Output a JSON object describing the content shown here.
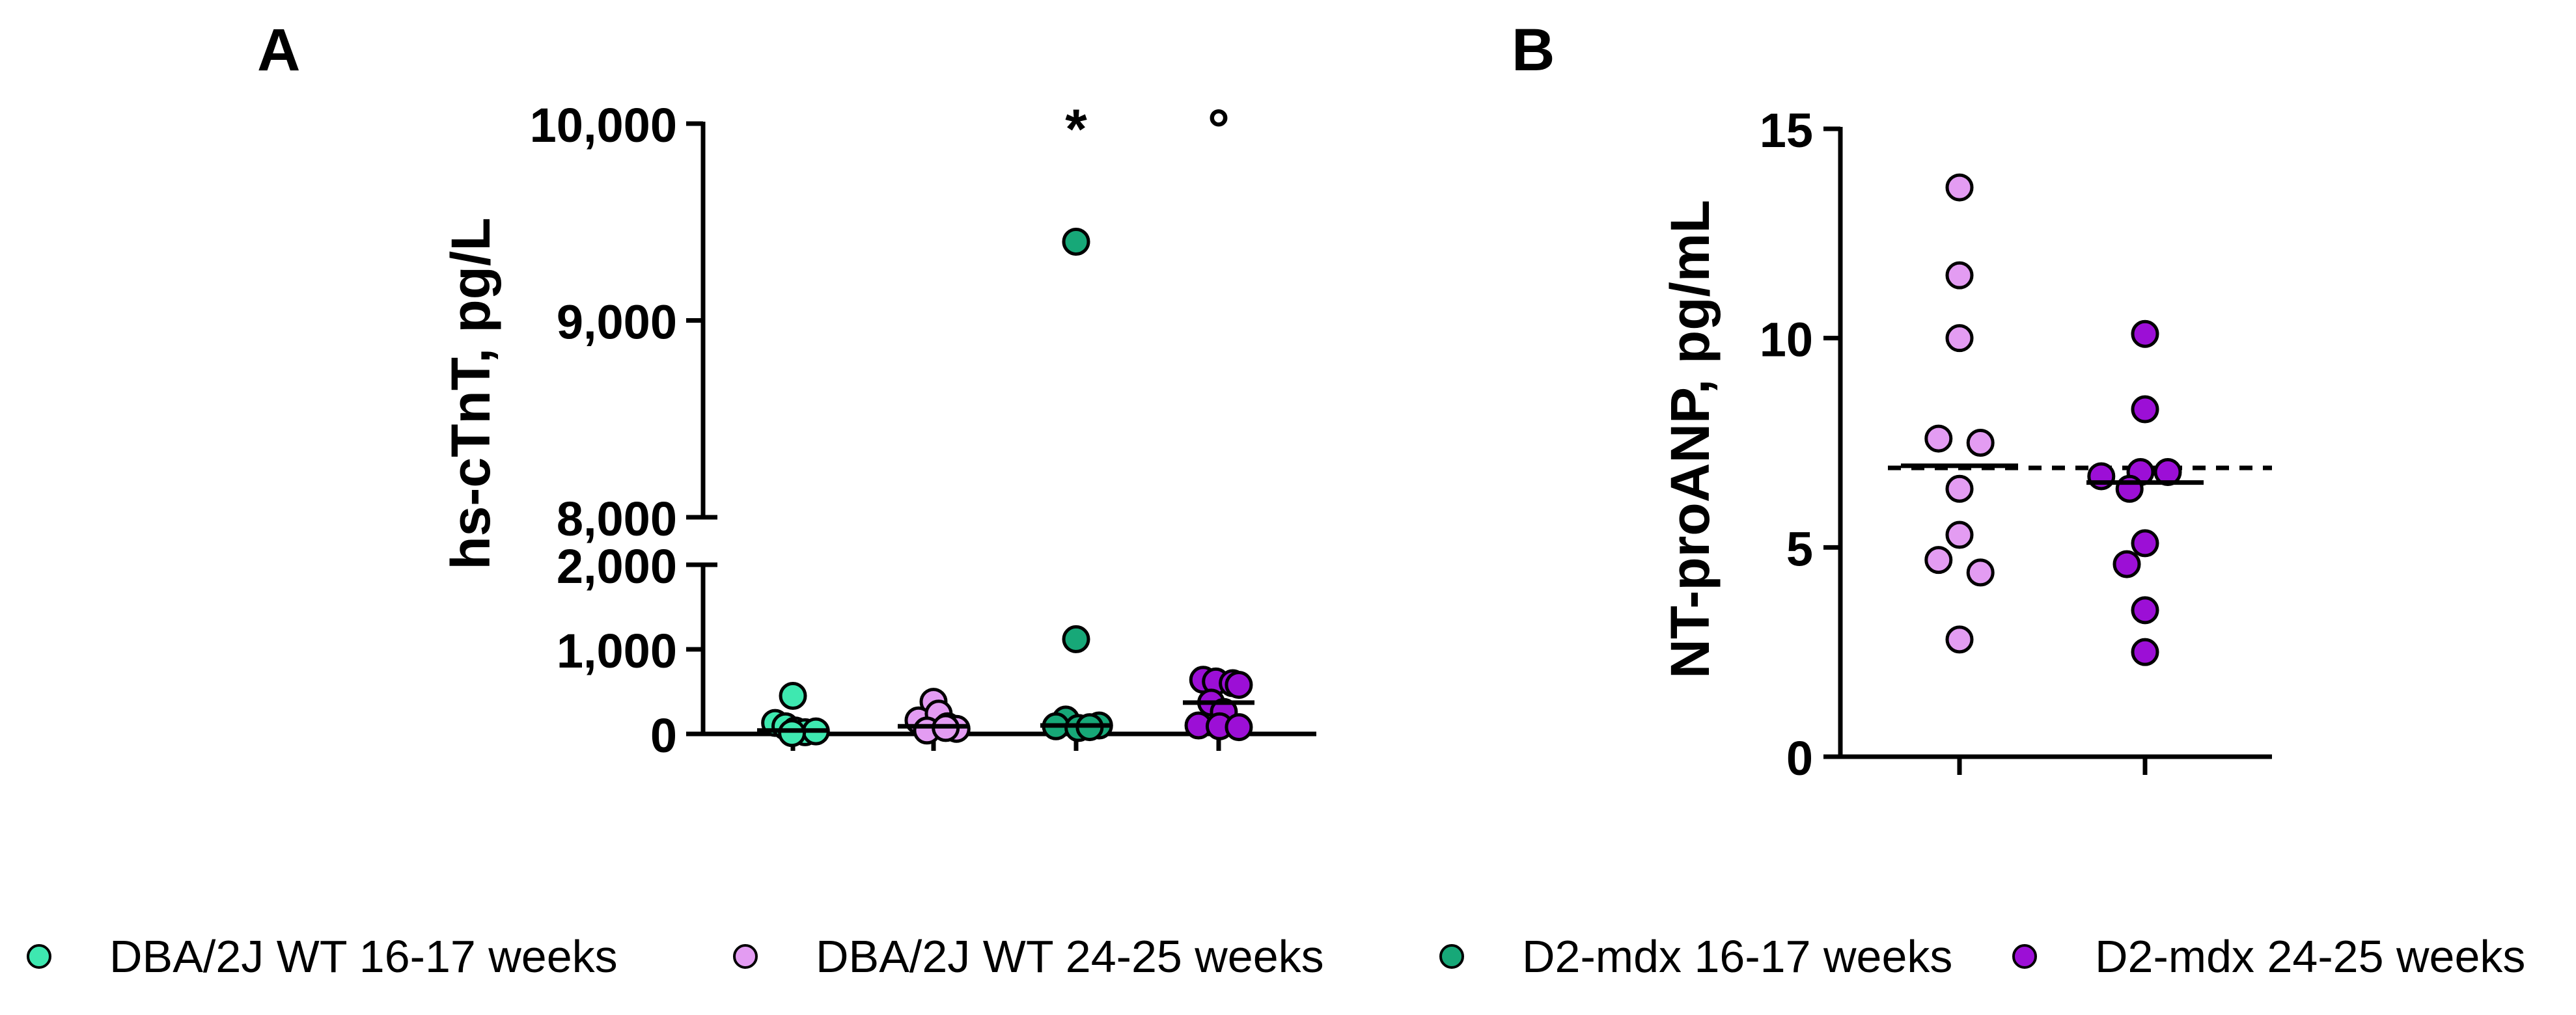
{
  "colors": {
    "dba_16": "#3ee8b0",
    "dba_24": "#e39cf2",
    "mdx_16": "#17a878",
    "mdx_24": "#9c0fd6",
    "axis": "#000000"
  },
  "chart_data": [
    {
      "panel_label": "A",
      "type": "scatter",
      "ylabel": "hs-cTnT, pg/L",
      "yaxis_broken": true,
      "lower_segment_ylim": [
        0,
        2000
      ],
      "upper_segment_ylim": [
        8000,
        10000
      ],
      "tick_labels": [
        "0",
        "1,000",
        "2,000",
        "8,000",
        "9,000",
        "10,000"
      ],
      "tick_values": [
        0,
        1000,
        2000,
        8000,
        9000,
        10000
      ],
      "grid": false,
      "significance_marks": [
        {
          "group": "D2-mdx 16-17 weeks",
          "symbol": "*"
        },
        {
          "group": "D2-mdx 24-25 weeks",
          "symbol": "°"
        }
      ],
      "series": [
        {
          "name": "DBA/2J WT 16-17 weeks",
          "color_key": "dba_16",
          "values": [
            450,
            130,
            90,
            40,
            20,
            30,
            10
          ],
          "x_offsets": [
            0,
            -0.38,
            -0.16,
            0.05,
            0.26,
            0.49,
            -0.02
          ],
          "median": 40
        },
        {
          "name": "DBA/2J WT 24-25 weeks",
          "color_key": "dba_24",
          "values": [
            380,
            160,
            240,
            90,
            60,
            40,
            70
          ],
          "x_offsets": [
            0,
            -0.32,
            0.11,
            0.3,
            0.49,
            -0.14,
            0.26
          ],
          "median": 90
        },
        {
          "name": "D2-mdx 16-17 weeks",
          "color_key": "mdx_16",
          "values": [
            9400,
            1120,
            170,
            90,
            70,
            100,
            80
          ],
          "x_offsets": [
            0,
            0,
            -0.22,
            -0.43,
            0.05,
            0.49,
            0.29
          ],
          "median": 100
        },
        {
          "name": "D2-mdx 24-25 weeks",
          "color_key": "mdx_24",
          "values": [
            640,
            620,
            600,
            580,
            370,
            260,
            100,
            90,
            80
          ],
          "x_offsets": [
            -0.33,
            -0.06,
            0.3,
            0.43,
            -0.16,
            0.11,
            -0.43,
            0.02,
            0.43
          ],
          "median": 370
        }
      ]
    },
    {
      "panel_label": "B",
      "type": "scatter",
      "ylabel": "NT-proANP, pg/mL",
      "ylim": [
        0,
        15
      ],
      "tick_labels": [
        "0",
        "5",
        "10",
        "15"
      ],
      "tick_values": [
        0,
        5,
        10,
        15
      ],
      "grid": false,
      "reference_line": 6.9,
      "series": [
        {
          "name": "DBA/2J WT 24-25 weeks",
          "color_key": "dba_24",
          "values": [
            13.6,
            11.5,
            10.0,
            7.6,
            7.5,
            6.4,
            5.3,
            4.7,
            4.4,
            2.8
          ],
          "x_offsets": [
            0,
            0,
            0,
            -0.23,
            0.23,
            0,
            0,
            -0.23,
            0.23,
            0
          ],
          "median": 6.95
        },
        {
          "name": "D2-mdx 24-25 weeks",
          "color_key": "mdx_24",
          "values": [
            10.1,
            8.3,
            6.8,
            6.8,
            6.7,
            6.4,
            5.1,
            4.6,
            3.5,
            2.5
          ],
          "x_offsets": [
            0,
            0,
            -0.05,
            0.25,
            -0.48,
            -0.17,
            0,
            -0.2,
            0,
            0
          ],
          "median": 6.55
        }
      ]
    }
  ],
  "legend": {
    "placement": "bottom",
    "items": [
      {
        "label": "DBA/2J WT 16-17 weeks",
        "color_key": "dba_16"
      },
      {
        "label": "DBA/2J WT 24-25 weeks",
        "color_key": "dba_24"
      },
      {
        "label": "D2-mdx 16-17 weeks",
        "color_key": "mdx_16"
      },
      {
        "label": "D2-mdx 24-25 weeks",
        "color_key": "mdx_24"
      }
    ]
  }
}
